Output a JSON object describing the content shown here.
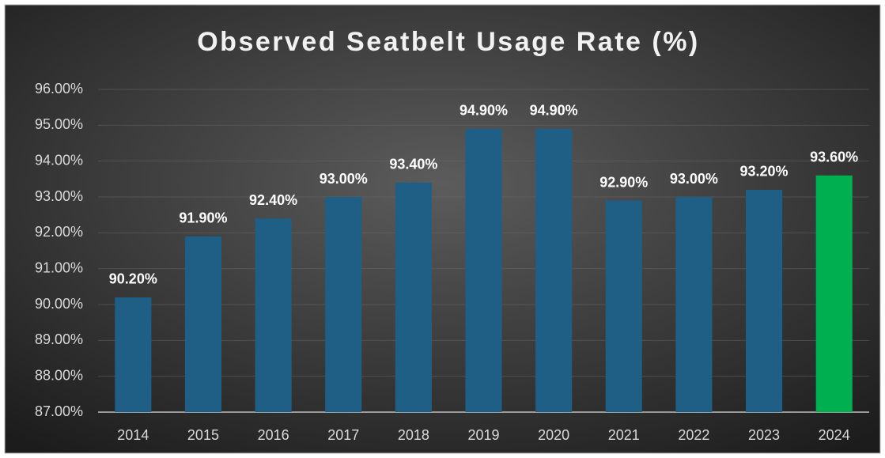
{
  "chart_data": {
    "type": "bar",
    "title": "Observed Seatbelt Usage Rate (%)",
    "categories": [
      "2014",
      "2015",
      "2016",
      "2017",
      "2018",
      "2019",
      "2020",
      "2021",
      "2022",
      "2023",
      "2024"
    ],
    "values": [
      90.2,
      91.9,
      92.4,
      93.0,
      93.4,
      94.9,
      94.9,
      92.9,
      93.0,
      93.2,
      93.6
    ],
    "value_labels": [
      "90.20%",
      "91.90%",
      "92.40%",
      "93.00%",
      "93.40%",
      "94.90%",
      "94.90%",
      "92.90%",
      "93.00%",
      "93.20%",
      "93.60%"
    ],
    "colors": [
      "#1f5f86",
      "#1f5f86",
      "#1f5f86",
      "#1f5f86",
      "#1f5f86",
      "#1f5f86",
      "#1f5f86",
      "#1f5f86",
      "#1f5f86",
      "#1f5f86",
      "#00b050"
    ],
    "ylim": [
      87,
      96
    ],
    "yticks": [
      {
        "value": 87,
        "label": "87.00%"
      },
      {
        "value": 88,
        "label": "88.00%"
      },
      {
        "value": 89,
        "label": "89.00%"
      },
      {
        "value": 90,
        "label": "90.00%"
      },
      {
        "value": 91,
        "label": "91.00%"
      },
      {
        "value": 92,
        "label": "92.00%"
      },
      {
        "value": 93,
        "label": "93.00%"
      },
      {
        "value": 94,
        "label": "94.00%"
      },
      {
        "value": 95,
        "label": "95.00%"
      },
      {
        "value": 96,
        "label": "96.00%"
      }
    ],
    "grid": true
  }
}
